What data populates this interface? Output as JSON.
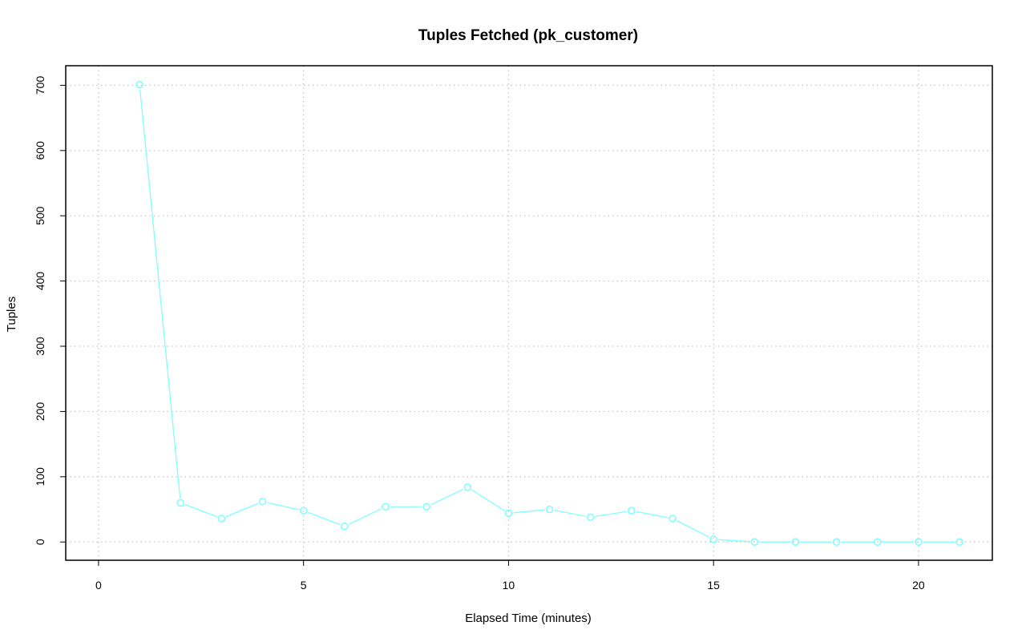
{
  "chart_data": {
    "type": "line",
    "title": "Tuples Fetched (pk_customer)",
    "xlabel": "Elapsed Time (minutes)",
    "ylabel": "Tuples",
    "xlim": [
      -0.8,
      21.8
    ],
    "ylim": [
      -28,
      730
    ],
    "x_ticks": [
      0,
      5,
      10,
      15,
      20
    ],
    "y_ticks": [
      0,
      100,
      200,
      300,
      400,
      500,
      600,
      700
    ],
    "grid": true,
    "series_color": "#7fffff",
    "x": [
      1,
      2,
      3,
      4,
      5,
      6,
      7,
      8,
      9,
      10,
      11,
      12,
      13,
      14,
      15,
      16,
      17,
      18,
      19,
      20,
      21
    ],
    "y": [
      701,
      60,
      36,
      62,
      48,
      24,
      54,
      54,
      84,
      44,
      50,
      38,
      48,
      36,
      4,
      0,
      0,
      0,
      0,
      0,
      0
    ]
  }
}
